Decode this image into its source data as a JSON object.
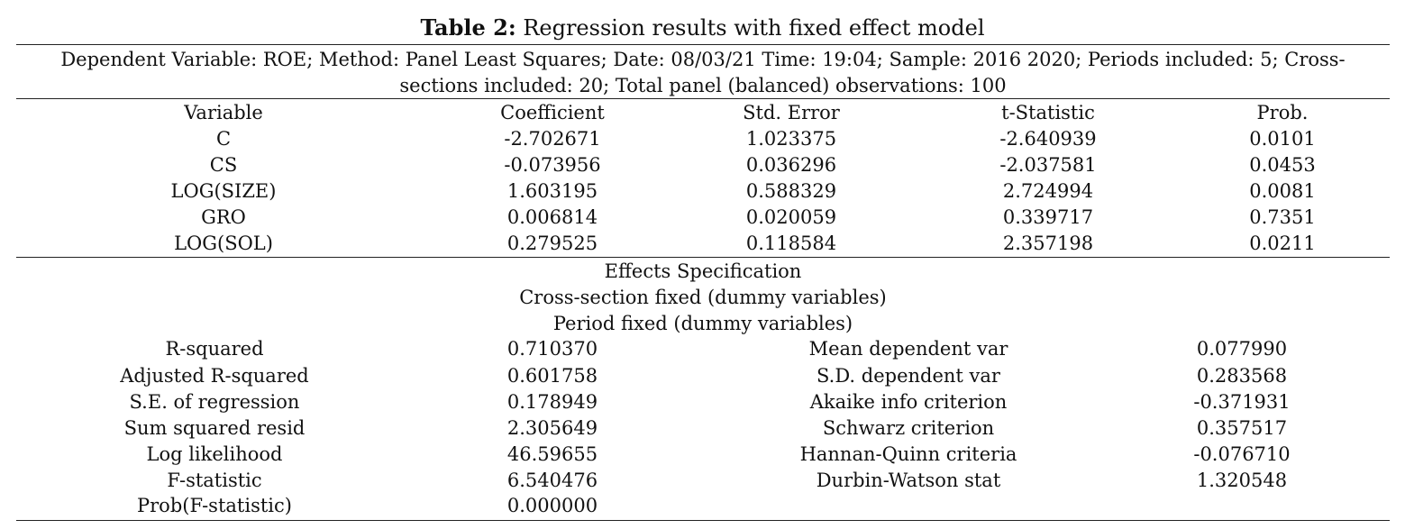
{
  "table": {
    "title_label": "Table 2:",
    "title_text": " Regression results with fixed effect model",
    "description_line1": "Dependent Variable: ROE; Method: Panel Least Squares; Date: 08/03/21 Time: 19:04; Sample: 2016 2020; Periods included: 5; Cross-",
    "description_line2": "sections included: 20; Total panel (balanced) observations: 100",
    "headers": [
      "Variable",
      "Coefficient",
      "Std. Error",
      "t-Statistic",
      "Prob."
    ],
    "rows": [
      [
        "C",
        "-2.702671",
        "1.023375",
        "-2.640939",
        "0.0101"
      ],
      [
        "CS",
        "-0.073956",
        "0.036296",
        "-2.037581",
        "0.0453"
      ],
      [
        "LOG(SIZE)",
        "1.603195",
        "0.588329",
        "2.724994",
        "0.0081"
      ],
      [
        "GRO",
        "0.006814",
        "0.020059",
        "0.339717",
        "0.7351"
      ],
      [
        "LOG(SOL)",
        "0.279525",
        "0.118584",
        "2.357198",
        "0.0211"
      ]
    ],
    "effects": {
      "heading": "Effects Specification",
      "line1": "Cross-section fixed (dummy variables)",
      "line2": "Period fixed (dummy variables)"
    },
    "stats": [
      [
        "R-squared",
        "0.710370",
        "Mean dependent var",
        "0.077990"
      ],
      [
        "Adjusted R-squared",
        "0.601758",
        "S.D. dependent var",
        "0.283568"
      ],
      [
        "S.E. of regression",
        "0.178949",
        "Akaike info criterion",
        "-0.371931"
      ],
      [
        "Sum squared resid",
        "2.305649",
        "Schwarz criterion",
        "0.357517"
      ],
      [
        "Log likelihood",
        "46.59655",
        "Hannan-Quinn criteria",
        "-0.076710"
      ],
      [
        "F-statistic",
        "6.540476",
        "Durbin-Watson stat",
        "1.320548"
      ],
      [
        "Prob(F-statistic)",
        "0.000000",
        "",
        ""
      ]
    ]
  }
}
